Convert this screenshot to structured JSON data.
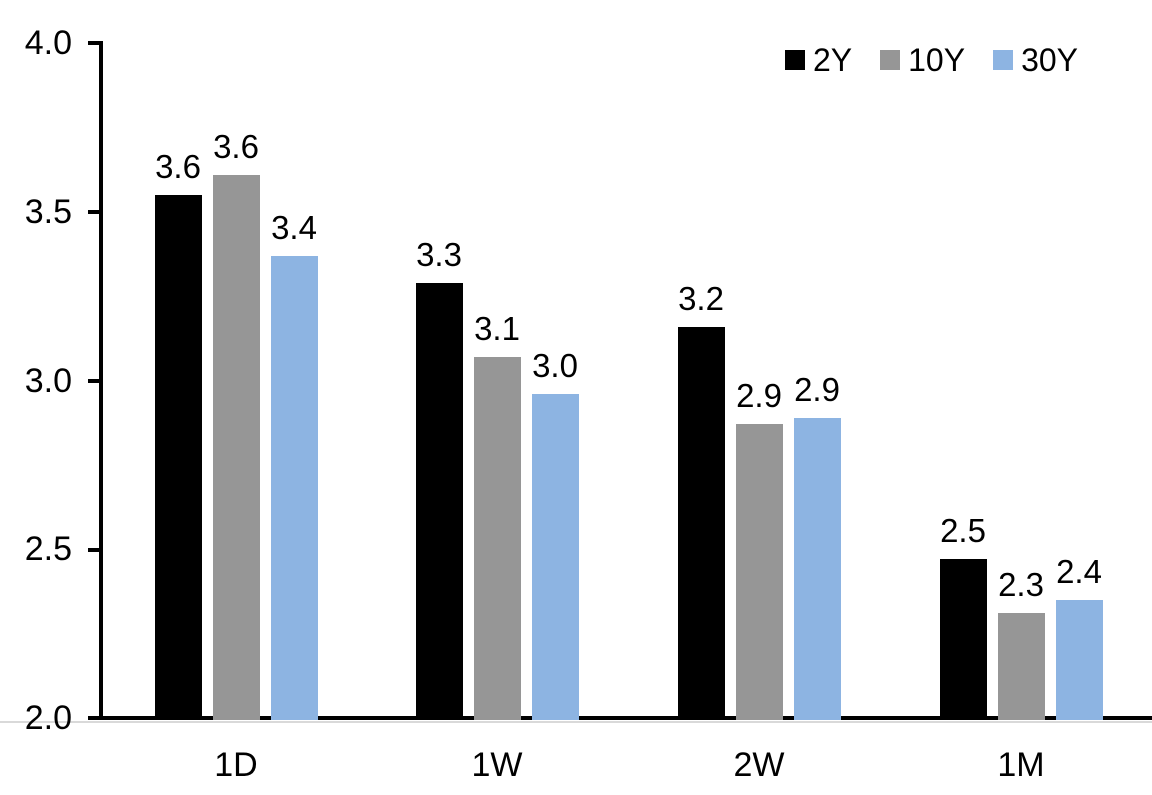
{
  "chart_data": {
    "type": "bar",
    "title": "",
    "xlabel": "",
    "ylabel": "",
    "categories": [
      "1D",
      "1W",
      "2W",
      "1M"
    ],
    "series": [
      {
        "name": "2Y",
        "color": "#000000",
        "values": [
          3.55,
          3.29,
          3.16,
          2.47
        ],
        "labels": [
          "3.6",
          "3.3",
          "3.2",
          "2.5"
        ]
      },
      {
        "name": "10Y",
        "color": "#969696",
        "values": [
          3.61,
          3.07,
          2.87,
          2.31
        ],
        "labels": [
          "3.6",
          "3.1",
          "2.9",
          "2.3"
        ]
      },
      {
        "name": "30Y",
        "color": "#8DB4E2",
        "values": [
          3.37,
          2.96,
          2.89,
          2.35
        ],
        "labels": [
          "3.4",
          "3.0",
          "2.9",
          "2.4"
        ]
      }
    ],
    "ylim": [
      2.0,
      4.0
    ],
    "ytick_step": 0.5,
    "ytick_labels": [
      "4.0",
      "3.5",
      "3.0",
      "2.5",
      "2.0"
    ],
    "grid": false,
    "legend_position": "top-right",
    "axis_color": "#000000",
    "baseline_shadow_color": "#D9D9D9"
  }
}
